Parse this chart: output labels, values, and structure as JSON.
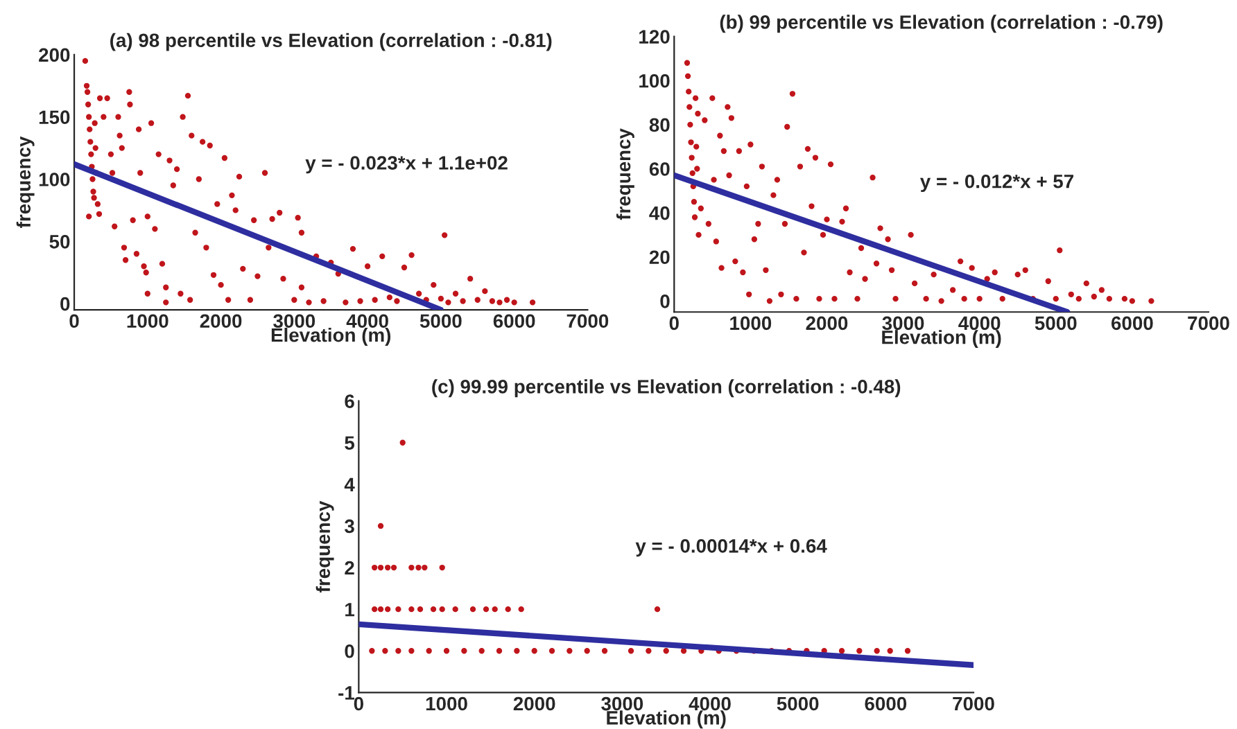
{
  "chart_data": [
    {
      "type": "scatter",
      "title": "(a) 98 percentile vs Elevation (correlation : -0.81)",
      "xlabel": "Elevation (m)",
      "ylabel": "frequency",
      "xlim": [
        0,
        7000
      ],
      "xticks": [
        0,
        1000,
        2000,
        3000,
        4000,
        5000,
        6000,
        7000
      ],
      "ylim": [
        -5,
        200
      ],
      "yticks": [
        0,
        50,
        100,
        150,
        200
      ],
      "annotations": [
        "y = - 0.023*x + 1.1e+02"
      ],
      "series": [
        {
          "marker": "circle",
          "color": "#c0151b",
          "x": [
            150,
            170,
            180,
            190,
            200,
            210,
            220,
            230,
            240,
            250,
            260,
            270,
            280,
            290,
            300,
            320,
            340,
            200,
            350,
            400,
            450,
            500,
            520,
            550,
            600,
            620,
            650,
            680,
            700,
            750,
            760,
            800,
            850,
            880,
            900,
            950,
            980,
            1000,
            1000,
            1050,
            1100,
            1150,
            1200,
            1250,
            1250,
            1300,
            1350,
            1400,
            1450,
            1480,
            1550,
            1580,
            1600,
            1650,
            1700,
            1750,
            1800,
            1850,
            1900,
            1950,
            2000,
            2050,
            2100,
            2150,
            2200,
            2250,
            2300,
            2400,
            2450,
            2500,
            2600,
            2650,
            2700,
            2800,
            2850,
            3000,
            3050,
            3100,
            3100,
            3200,
            3300,
            3400,
            3500,
            3600,
            3700,
            3800,
            3900,
            4000,
            4100,
            4200,
            4300,
            4400,
            4500,
            4600,
            4700,
            4800,
            4900,
            5000,
            5050,
            5100,
            5200,
            5300,
            5400,
            5500,
            5600,
            5700,
            5800,
            5900,
            6000,
            6250
          ],
          "values": [
            195,
            175,
            170,
            160,
            150,
            140,
            130,
            120,
            110,
            100,
            90,
            85,
            145,
            125,
            105,
            80,
            72,
            70,
            165,
            150,
            165,
            120,
            105,
            62,
            150,
            135,
            125,
            45,
            35,
            170,
            160,
            67,
            40,
            140,
            105,
            30,
            25,
            70,
            8,
            145,
            60,
            120,
            32,
            1,
            13,
            115,
            95,
            108,
            8,
            150,
            167,
            3,
            135,
            57,
            100,
            130,
            45,
            127,
            23,
            80,
            15,
            117,
            3,
            87,
            75,
            102,
            28,
            3,
            67,
            22,
            105,
            45,
            68,
            73,
            20,
            3,
            69,
            57,
            13,
            1,
            38,
            2,
            33,
            24,
            1,
            44,
            2,
            30,
            3,
            38,
            5,
            2,
            29,
            39,
            8,
            3,
            15,
            4,
            55,
            1,
            8,
            2,
            20,
            3,
            10,
            2,
            1,
            3,
            1,
            1
          ]
        },
        {
          "type": "line",
          "color": "#2e2ea0",
          "x": [
            0,
            5000
          ],
          "values": [
            112,
            -5
          ]
        }
      ]
    },
    {
      "type": "scatter",
      "title": "(b) 99 percentile vs Elevation (correlation : -0.79)",
      "xlabel": "Elevation (m)",
      "ylabel": "frequency",
      "xlim": [
        0,
        7000
      ],
      "xticks": [
        0,
        1000,
        2000,
        3000,
        4000,
        5000,
        6000,
        7000
      ],
      "ylim": [
        -5,
        120
      ],
      "yticks": [
        0,
        20,
        40,
        60,
        80,
        100,
        120
      ],
      "annotations": [
        "y = - 0.012*x + 57"
      ],
      "series": [
        {
          "marker": "circle",
          "color": "#c0151b",
          "x": [
            170,
            180,
            190,
            200,
            210,
            220,
            230,
            240,
            250,
            260,
            270,
            280,
            290,
            300,
            310,
            320,
            350,
            400,
            450,
            500,
            520,
            550,
            600,
            620,
            650,
            700,
            720,
            750,
            800,
            850,
            900,
            950,
            980,
            1000,
            1050,
            1100,
            1150,
            1200,
            1250,
            1300,
            1350,
            1400,
            1450,
            1480,
            1550,
            1600,
            1650,
            1700,
            1750,
            1800,
            1850,
            1900,
            1950,
            2000,
            2050,
            2100,
            2200,
            2250,
            2300,
            2400,
            2450,
            2500,
            2600,
            2650,
            2700,
            2800,
            2850,
            2900,
            3100,
            3150,
            3300,
            3400,
            3500,
            3650,
            3750,
            3800,
            3900,
            4000,
            4100,
            4200,
            4300,
            4500,
            4600,
            4700,
            4900,
            5000,
            5050,
            5200,
            5300,
            5400,
            5500,
            5600,
            5700,
            5900,
            6000,
            6250
          ],
          "values": [
            108,
            102,
            95,
            88,
            80,
            72,
            65,
            58,
            52,
            45,
            38,
            92,
            70,
            60,
            85,
            30,
            42,
            82,
            35,
            92,
            55,
            27,
            75,
            15,
            68,
            88,
            57,
            83,
            18,
            68,
            13,
            52,
            3,
            71,
            28,
            35,
            61,
            14,
            0,
            48,
            55,
            3,
            35,
            79,
            94,
            1,
            61,
            22,
            69,
            43,
            65,
            1,
            30,
            37,
            62,
            1,
            36,
            42,
            13,
            1,
            24,
            10,
            56,
            17,
            33,
            28,
            14,
            1,
            30,
            8,
            1,
            12,
            0,
            5,
            18,
            1,
            15,
            1,
            10,
            13,
            1,
            12,
            14,
            1,
            9,
            1,
            23,
            3,
            1,
            8,
            2,
            5,
            1,
            1,
            0,
            0
          ]
        },
        {
          "type": "line",
          "color": "#2e2ea0",
          "x": [
            0,
            5150
          ],
          "values": [
            57,
            -5
          ]
        }
      ]
    },
    {
      "type": "scatter",
      "title": "(c) 99.99 percentile vs Elevation (correlation : -0.48)",
      "xlabel": "Elevation (m)",
      "ylabel": "frequency",
      "xlim": [
        0,
        7000
      ],
      "xticks": [
        0,
        1000,
        2000,
        3000,
        4000,
        5000,
        6000,
        7000
      ],
      "ylim": [
        -1,
        6
      ],
      "yticks": [
        -1,
        0,
        1,
        2,
        3,
        4,
        5,
        6
      ],
      "annotations": [
        "y = - 0.00014*x + 0.64"
      ],
      "series": [
        {
          "marker": "circle",
          "color": "#c0151b",
          "x": [
            150,
            300,
            450,
            600,
            800,
            1000,
            1200,
            1400,
            1600,
            1800,
            2000,
            2200,
            2400,
            2600,
            2800,
            3100,
            3300,
            3500,
            3700,
            3900,
            4100,
            4300,
            4500,
            4700,
            4900,
            5100,
            5300,
            5500,
            5700,
            5900,
            6050,
            6250,
            180,
            250,
            330,
            450,
            600,
            700,
            850,
            950,
            1100,
            1300,
            1450,
            1550,
            1700,
            1850,
            3400,
            180,
            250,
            330,
            400,
            600,
            680,
            750,
            950,
            250,
            500
          ],
          "values": [
            0,
            0,
            0,
            0,
            0,
            0,
            0,
            0,
            0,
            0,
            0,
            0,
            0,
            0,
            0,
            0,
            0,
            0,
            0,
            0,
            0,
            0,
            0,
            0,
            0,
            0,
            0,
            0,
            0,
            0,
            0,
            0,
            1,
            1,
            1,
            1,
            1,
            1,
            1,
            1,
            1,
            1,
            1,
            1,
            1,
            1,
            1,
            2,
            2,
            2,
            2,
            2,
            2,
            2,
            2,
            3,
            5
          ]
        },
        {
          "type": "line",
          "color": "#2e2ea0",
          "x": [
            0,
            7000
          ],
          "values": [
            0.64,
            -0.34
          ]
        }
      ]
    }
  ]
}
